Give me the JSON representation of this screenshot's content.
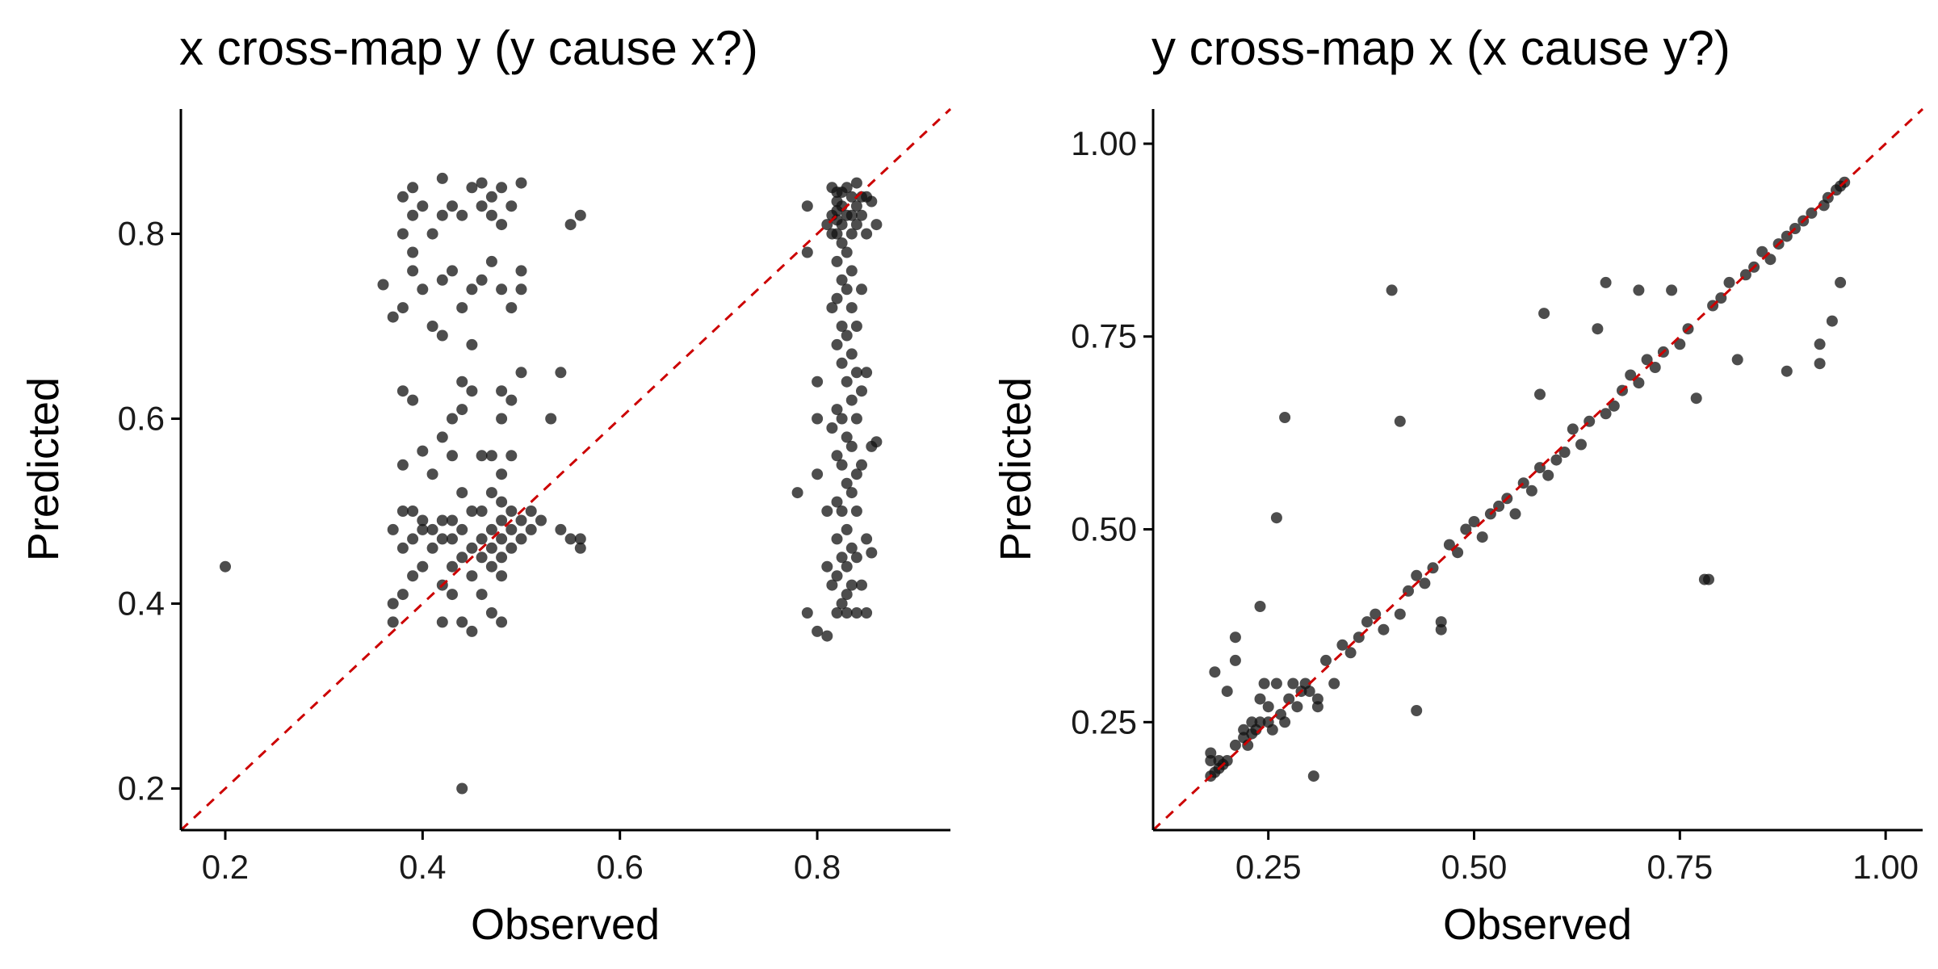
{
  "chart_data": [
    {
      "type": "scatter",
      "title": "x cross-map y (y cause x?)",
      "xlabel": "Observed",
      "ylabel": "Predicted",
      "xlim": [
        0.155,
        0.935
      ],
      "ylim": [
        0.155,
        0.935
      ],
      "xticks": [
        0.2,
        0.4,
        0.6,
        0.8
      ],
      "xtick_labels": [
        "0.2",
        "0.4",
        "0.6",
        "0.8"
      ],
      "yticks": [
        0.2,
        0.4,
        0.6,
        0.8
      ],
      "ytick_labels": [
        "0.2",
        "0.4",
        "0.6",
        "0.8"
      ],
      "reference_line": "y = x (red dashed)",
      "grid": false,
      "points": [
        [
          0.2,
          0.44
        ],
        [
          0.44,
          0.2
        ],
        [
          0.37,
          0.38
        ],
        [
          0.38,
          0.41
        ],
        [
          0.38,
          0.46
        ],
        [
          0.38,
          0.5
        ],
        [
          0.38,
          0.55
        ],
        [
          0.38,
          0.63
        ],
        [
          0.38,
          0.72
        ],
        [
          0.38,
          0.8
        ],
        [
          0.38,
          0.84
        ],
        [
          0.36,
          0.745
        ],
        [
          0.37,
          0.71
        ],
        [
          0.37,
          0.48
        ],
        [
          0.37,
          0.4
        ],
        [
          0.39,
          0.62
        ],
        [
          0.39,
          0.76
        ],
        [
          0.39,
          0.78
        ],
        [
          0.39,
          0.5
        ],
        [
          0.39,
          0.47
        ],
        [
          0.39,
          0.43
        ],
        [
          0.39,
          0.82
        ],
        [
          0.39,
          0.85
        ],
        [
          0.4,
          0.565
        ],
        [
          0.4,
          0.74
        ],
        [
          0.4,
          0.48
        ],
        [
          0.4,
          0.44
        ],
        [
          0.4,
          0.49
        ],
        [
          0.4,
          0.83
        ],
        [
          0.41,
          0.8
        ],
        [
          0.41,
          0.7
        ],
        [
          0.41,
          0.48
        ],
        [
          0.41,
          0.46
        ],
        [
          0.41,
          0.54
        ],
        [
          0.42,
          0.86
        ],
        [
          0.42,
          0.82
        ],
        [
          0.42,
          0.75
        ],
        [
          0.42,
          0.69
        ],
        [
          0.42,
          0.58
        ],
        [
          0.42,
          0.49
        ],
        [
          0.42,
          0.47
        ],
        [
          0.42,
          0.42
        ],
        [
          0.42,
          0.38
        ],
        [
          0.43,
          0.83
        ],
        [
          0.43,
          0.76
        ],
        [
          0.43,
          0.6
        ],
        [
          0.43,
          0.56
        ],
        [
          0.43,
          0.49
        ],
        [
          0.43,
          0.47
        ],
        [
          0.43,
          0.44
        ],
        [
          0.43,
          0.41
        ],
        [
          0.44,
          0.82
        ],
        [
          0.44,
          0.72
        ],
        [
          0.44,
          0.64
        ],
        [
          0.44,
          0.61
        ],
        [
          0.44,
          0.52
        ],
        [
          0.44,
          0.48
        ],
        [
          0.44,
          0.45
        ],
        [
          0.44,
          0.38
        ],
        [
          0.45,
          0.85
        ],
        [
          0.45,
          0.74
        ],
        [
          0.45,
          0.68
        ],
        [
          0.45,
          0.63
        ],
        [
          0.45,
          0.5
        ],
        [
          0.45,
          0.46
        ],
        [
          0.45,
          0.43
        ],
        [
          0.45,
          0.37
        ],
        [
          0.46,
          0.855
        ],
        [
          0.46,
          0.83
        ],
        [
          0.46,
          0.75
        ],
        [
          0.46,
          0.56
        ],
        [
          0.46,
          0.5
        ],
        [
          0.46,
          0.47
        ],
        [
          0.46,
          0.45
        ],
        [
          0.46,
          0.41
        ],
        [
          0.47,
          0.84
        ],
        [
          0.47,
          0.82
        ],
        [
          0.47,
          0.77
        ],
        [
          0.47,
          0.56
        ],
        [
          0.47,
          0.52
        ],
        [
          0.47,
          0.48
        ],
        [
          0.47,
          0.46
        ],
        [
          0.47,
          0.44
        ],
        [
          0.47,
          0.39
        ],
        [
          0.48,
          0.85
        ],
        [
          0.48,
          0.81
        ],
        [
          0.48,
          0.74
        ],
        [
          0.48,
          0.63
        ],
        [
          0.48,
          0.6
        ],
        [
          0.48,
          0.54
        ],
        [
          0.48,
          0.51
        ],
        [
          0.48,
          0.49
        ],
        [
          0.48,
          0.47
        ],
        [
          0.48,
          0.45
        ],
        [
          0.48,
          0.43
        ],
        [
          0.48,
          0.38
        ],
        [
          0.49,
          0.83
        ],
        [
          0.49,
          0.72
        ],
        [
          0.49,
          0.62
        ],
        [
          0.49,
          0.56
        ],
        [
          0.49,
          0.5
        ],
        [
          0.49,
          0.48
        ],
        [
          0.49,
          0.46
        ],
        [
          0.5,
          0.855
        ],
        [
          0.5,
          0.76
        ],
        [
          0.5,
          0.74
        ],
        [
          0.5,
          0.65
        ],
        [
          0.5,
          0.49
        ],
        [
          0.5,
          0.47
        ],
        [
          0.51,
          0.5
        ],
        [
          0.51,
          0.48
        ],
        [
          0.52,
          0.49
        ],
        [
          0.53,
          0.6
        ],
        [
          0.54,
          0.48
        ],
        [
          0.54,
          0.65
        ],
        [
          0.55,
          0.81
        ],
        [
          0.55,
          0.47
        ],
        [
          0.56,
          0.82
        ],
        [
          0.56,
          0.47
        ],
        [
          0.56,
          0.46
        ],
        [
          0.78,
          0.52
        ],
        [
          0.79,
          0.78
        ],
        [
          0.79,
          0.83
        ],
        [
          0.79,
          0.39
        ],
        [
          0.8,
          0.64
        ],
        [
          0.8,
          0.6
        ],
        [
          0.8,
          0.54
        ],
        [
          0.8,
          0.37
        ],
        [
          0.81,
          0.44
        ],
        [
          0.81,
          0.5
        ],
        [
          0.81,
          0.81
        ],
        [
          0.81,
          0.365
        ],
        [
          0.815,
          0.85
        ],
        [
          0.815,
          0.82
        ],
        [
          0.815,
          0.8
        ],
        [
          0.815,
          0.72
        ],
        [
          0.815,
          0.59
        ],
        [
          0.815,
          0.42
        ],
        [
          0.82,
          0.845
        ],
        [
          0.82,
          0.835
        ],
        [
          0.82,
          0.825
        ],
        [
          0.82,
          0.815
        ],
        [
          0.82,
          0.8
        ],
        [
          0.82,
          0.77
        ],
        [
          0.82,
          0.73
        ],
        [
          0.82,
          0.68
        ],
        [
          0.82,
          0.61
        ],
        [
          0.82,
          0.56
        ],
        [
          0.82,
          0.51
        ],
        [
          0.82,
          0.47
        ],
        [
          0.82,
          0.43
        ],
        [
          0.82,
          0.39
        ],
        [
          0.825,
          0.845
        ],
        [
          0.825,
          0.83
        ],
        [
          0.825,
          0.81
        ],
        [
          0.825,
          0.79
        ],
        [
          0.825,
          0.75
        ],
        [
          0.825,
          0.7
        ],
        [
          0.825,
          0.66
        ],
        [
          0.825,
          0.6
        ],
        [
          0.825,
          0.55
        ],
        [
          0.825,
          0.5
        ],
        [
          0.825,
          0.45
        ],
        [
          0.825,
          0.4
        ],
        [
          0.83,
          0.85
        ],
        [
          0.83,
          0.82
        ],
        [
          0.83,
          0.78
        ],
        [
          0.83,
          0.74
        ],
        [
          0.83,
          0.69
        ],
        [
          0.83,
          0.64
        ],
        [
          0.83,
          0.58
        ],
        [
          0.83,
          0.53
        ],
        [
          0.83,
          0.48
        ],
        [
          0.83,
          0.44
        ],
        [
          0.83,
          0.41
        ],
        [
          0.83,
          0.39
        ],
        [
          0.835,
          0.84
        ],
        [
          0.835,
          0.82
        ],
        [
          0.835,
          0.8
        ],
        [
          0.835,
          0.76
        ],
        [
          0.835,
          0.72
        ],
        [
          0.835,
          0.67
        ],
        [
          0.835,
          0.62
        ],
        [
          0.835,
          0.57
        ],
        [
          0.835,
          0.52
        ],
        [
          0.835,
          0.46
        ],
        [
          0.835,
          0.42
        ],
        [
          0.84,
          0.855
        ],
        [
          0.84,
          0.83
        ],
        [
          0.84,
          0.81
        ],
        [
          0.84,
          0.7
        ],
        [
          0.84,
          0.65
        ],
        [
          0.84,
          0.6
        ],
        [
          0.84,
          0.54
        ],
        [
          0.84,
          0.5
        ],
        [
          0.84,
          0.45
        ],
        [
          0.84,
          0.39
        ],
        [
          0.845,
          0.84
        ],
        [
          0.845,
          0.82
        ],
        [
          0.845,
          0.74
        ],
        [
          0.845,
          0.63
        ],
        [
          0.845,
          0.55
        ],
        [
          0.845,
          0.42
        ],
        [
          0.85,
          0.84
        ],
        [
          0.85,
          0.8
        ],
        [
          0.85,
          0.65
        ],
        [
          0.85,
          0.47
        ],
        [
          0.85,
          0.39
        ],
        [
          0.855,
          0.835
        ],
        [
          0.855,
          0.57
        ],
        [
          0.855,
          0.455
        ],
        [
          0.86,
          0.81
        ],
        [
          0.86,
          0.575
        ]
      ]
    },
    {
      "type": "scatter",
      "title": "y cross-map x (x cause y?)",
      "xlabel": "Observed",
      "ylabel": "Predicted",
      "xlim": [
        0.11,
        1.045
      ],
      "ylim": [
        0.11,
        1.045
      ],
      "xticks": [
        0.25,
        0.5,
        0.75,
        1.0
      ],
      "xtick_labels": [
        "0.25",
        "0.50",
        "0.75",
        "1.00"
      ],
      "yticks": [
        0.25,
        0.5,
        0.75,
        1.0
      ],
      "ytick_labels": [
        "0.25",
        "0.50",
        "0.75",
        "1.00"
      ],
      "reference_line": "y = x (red dashed)",
      "grid": false,
      "points": [
        [
          0.18,
          0.18
        ],
        [
          0.18,
          0.2
        ],
        [
          0.18,
          0.21
        ],
        [
          0.185,
          0.185
        ],
        [
          0.19,
          0.19
        ],
        [
          0.19,
          0.2
        ],
        [
          0.195,
          0.195
        ],
        [
          0.2,
          0.2
        ],
        [
          0.185,
          0.315
        ],
        [
          0.2,
          0.29
        ],
        [
          0.21,
          0.36
        ],
        [
          0.21,
          0.33
        ],
        [
          0.21,
          0.22
        ],
        [
          0.22,
          0.23
        ],
        [
          0.22,
          0.24
        ],
        [
          0.225,
          0.22
        ],
        [
          0.23,
          0.25
        ],
        [
          0.23,
          0.235
        ],
        [
          0.235,
          0.24
        ],
        [
          0.24,
          0.4
        ],
        [
          0.24,
          0.25
        ],
        [
          0.24,
          0.28
        ],
        [
          0.245,
          0.3
        ],
        [
          0.25,
          0.25
        ],
        [
          0.25,
          0.27
        ],
        [
          0.255,
          0.24
        ],
        [
          0.26,
          0.3
        ],
        [
          0.26,
          0.515
        ],
        [
          0.265,
          0.26
        ],
        [
          0.27,
          0.25
        ],
        [
          0.27,
          0.645
        ],
        [
          0.275,
          0.28
        ],
        [
          0.28,
          0.3
        ],
        [
          0.285,
          0.27
        ],
        [
          0.29,
          0.29
        ],
        [
          0.295,
          0.3
        ],
        [
          0.3,
          0.29
        ],
        [
          0.305,
          0.18
        ],
        [
          0.31,
          0.28
        ],
        [
          0.31,
          0.27
        ],
        [
          0.32,
          0.33
        ],
        [
          0.33,
          0.3
        ],
        [
          0.34,
          0.35
        ],
        [
          0.35,
          0.34
        ],
        [
          0.36,
          0.36
        ],
        [
          0.37,
          0.38
        ],
        [
          0.38,
          0.39
        ],
        [
          0.39,
          0.37
        ],
        [
          0.4,
          0.81
        ],
        [
          0.41,
          0.64
        ],
        [
          0.41,
          0.39
        ],
        [
          0.42,
          0.42
        ],
        [
          0.43,
          0.265
        ],
        [
          0.43,
          0.44
        ],
        [
          0.44,
          0.43
        ],
        [
          0.45,
          0.45
        ],
        [
          0.46,
          0.37
        ],
        [
          0.46,
          0.38
        ],
        [
          0.47,
          0.48
        ],
        [
          0.48,
          0.47
        ],
        [
          0.49,
          0.5
        ],
        [
          0.5,
          0.51
        ],
        [
          0.51,
          0.49
        ],
        [
          0.52,
          0.52
        ],
        [
          0.53,
          0.53
        ],
        [
          0.54,
          0.54
        ],
        [
          0.55,
          0.52
        ],
        [
          0.56,
          0.56
        ],
        [
          0.57,
          0.55
        ],
        [
          0.58,
          0.58
        ],
        [
          0.58,
          0.675
        ],
        [
          0.585,
          0.78
        ],
        [
          0.59,
          0.57
        ],
        [
          0.6,
          0.59
        ],
        [
          0.61,
          0.6
        ],
        [
          0.62,
          0.63
        ],
        [
          0.63,
          0.61
        ],
        [
          0.64,
          0.64
        ],
        [
          0.65,
          0.76
        ],
        [
          0.66,
          0.65
        ],
        [
          0.66,
          0.82
        ],
        [
          0.67,
          0.66
        ],
        [
          0.68,
          0.68
        ],
        [
          0.69,
          0.7
        ],
        [
          0.7,
          0.69
        ],
        [
          0.7,
          0.81
        ],
        [
          0.71,
          0.72
        ],
        [
          0.72,
          0.71
        ],
        [
          0.73,
          0.73
        ],
        [
          0.74,
          0.81
        ],
        [
          0.75,
          0.74
        ],
        [
          0.76,
          0.76
        ],
        [
          0.77,
          0.67
        ],
        [
          0.78,
          0.435
        ],
        [
          0.785,
          0.435
        ],
        [
          0.79,
          0.79
        ],
        [
          0.8,
          0.8
        ],
        [
          0.81,
          0.82
        ],
        [
          0.82,
          0.72
        ],
        [
          0.83,
          0.83
        ],
        [
          0.84,
          0.84
        ],
        [
          0.85,
          0.86
        ],
        [
          0.86,
          0.85
        ],
        [
          0.87,
          0.87
        ],
        [
          0.88,
          0.705
        ],
        [
          0.88,
          0.88
        ],
        [
          0.89,
          0.89
        ],
        [
          0.9,
          0.9
        ],
        [
          0.91,
          0.91
        ],
        [
          0.92,
          0.74
        ],
        [
          0.92,
          0.715
        ],
        [
          0.925,
          0.92
        ],
        [
          0.93,
          0.93
        ],
        [
          0.935,
          0.77
        ],
        [
          0.94,
          0.94
        ],
        [
          0.945,
          0.82
        ],
        [
          0.945,
          0.945
        ],
        [
          0.95,
          0.95
        ]
      ]
    }
  ]
}
